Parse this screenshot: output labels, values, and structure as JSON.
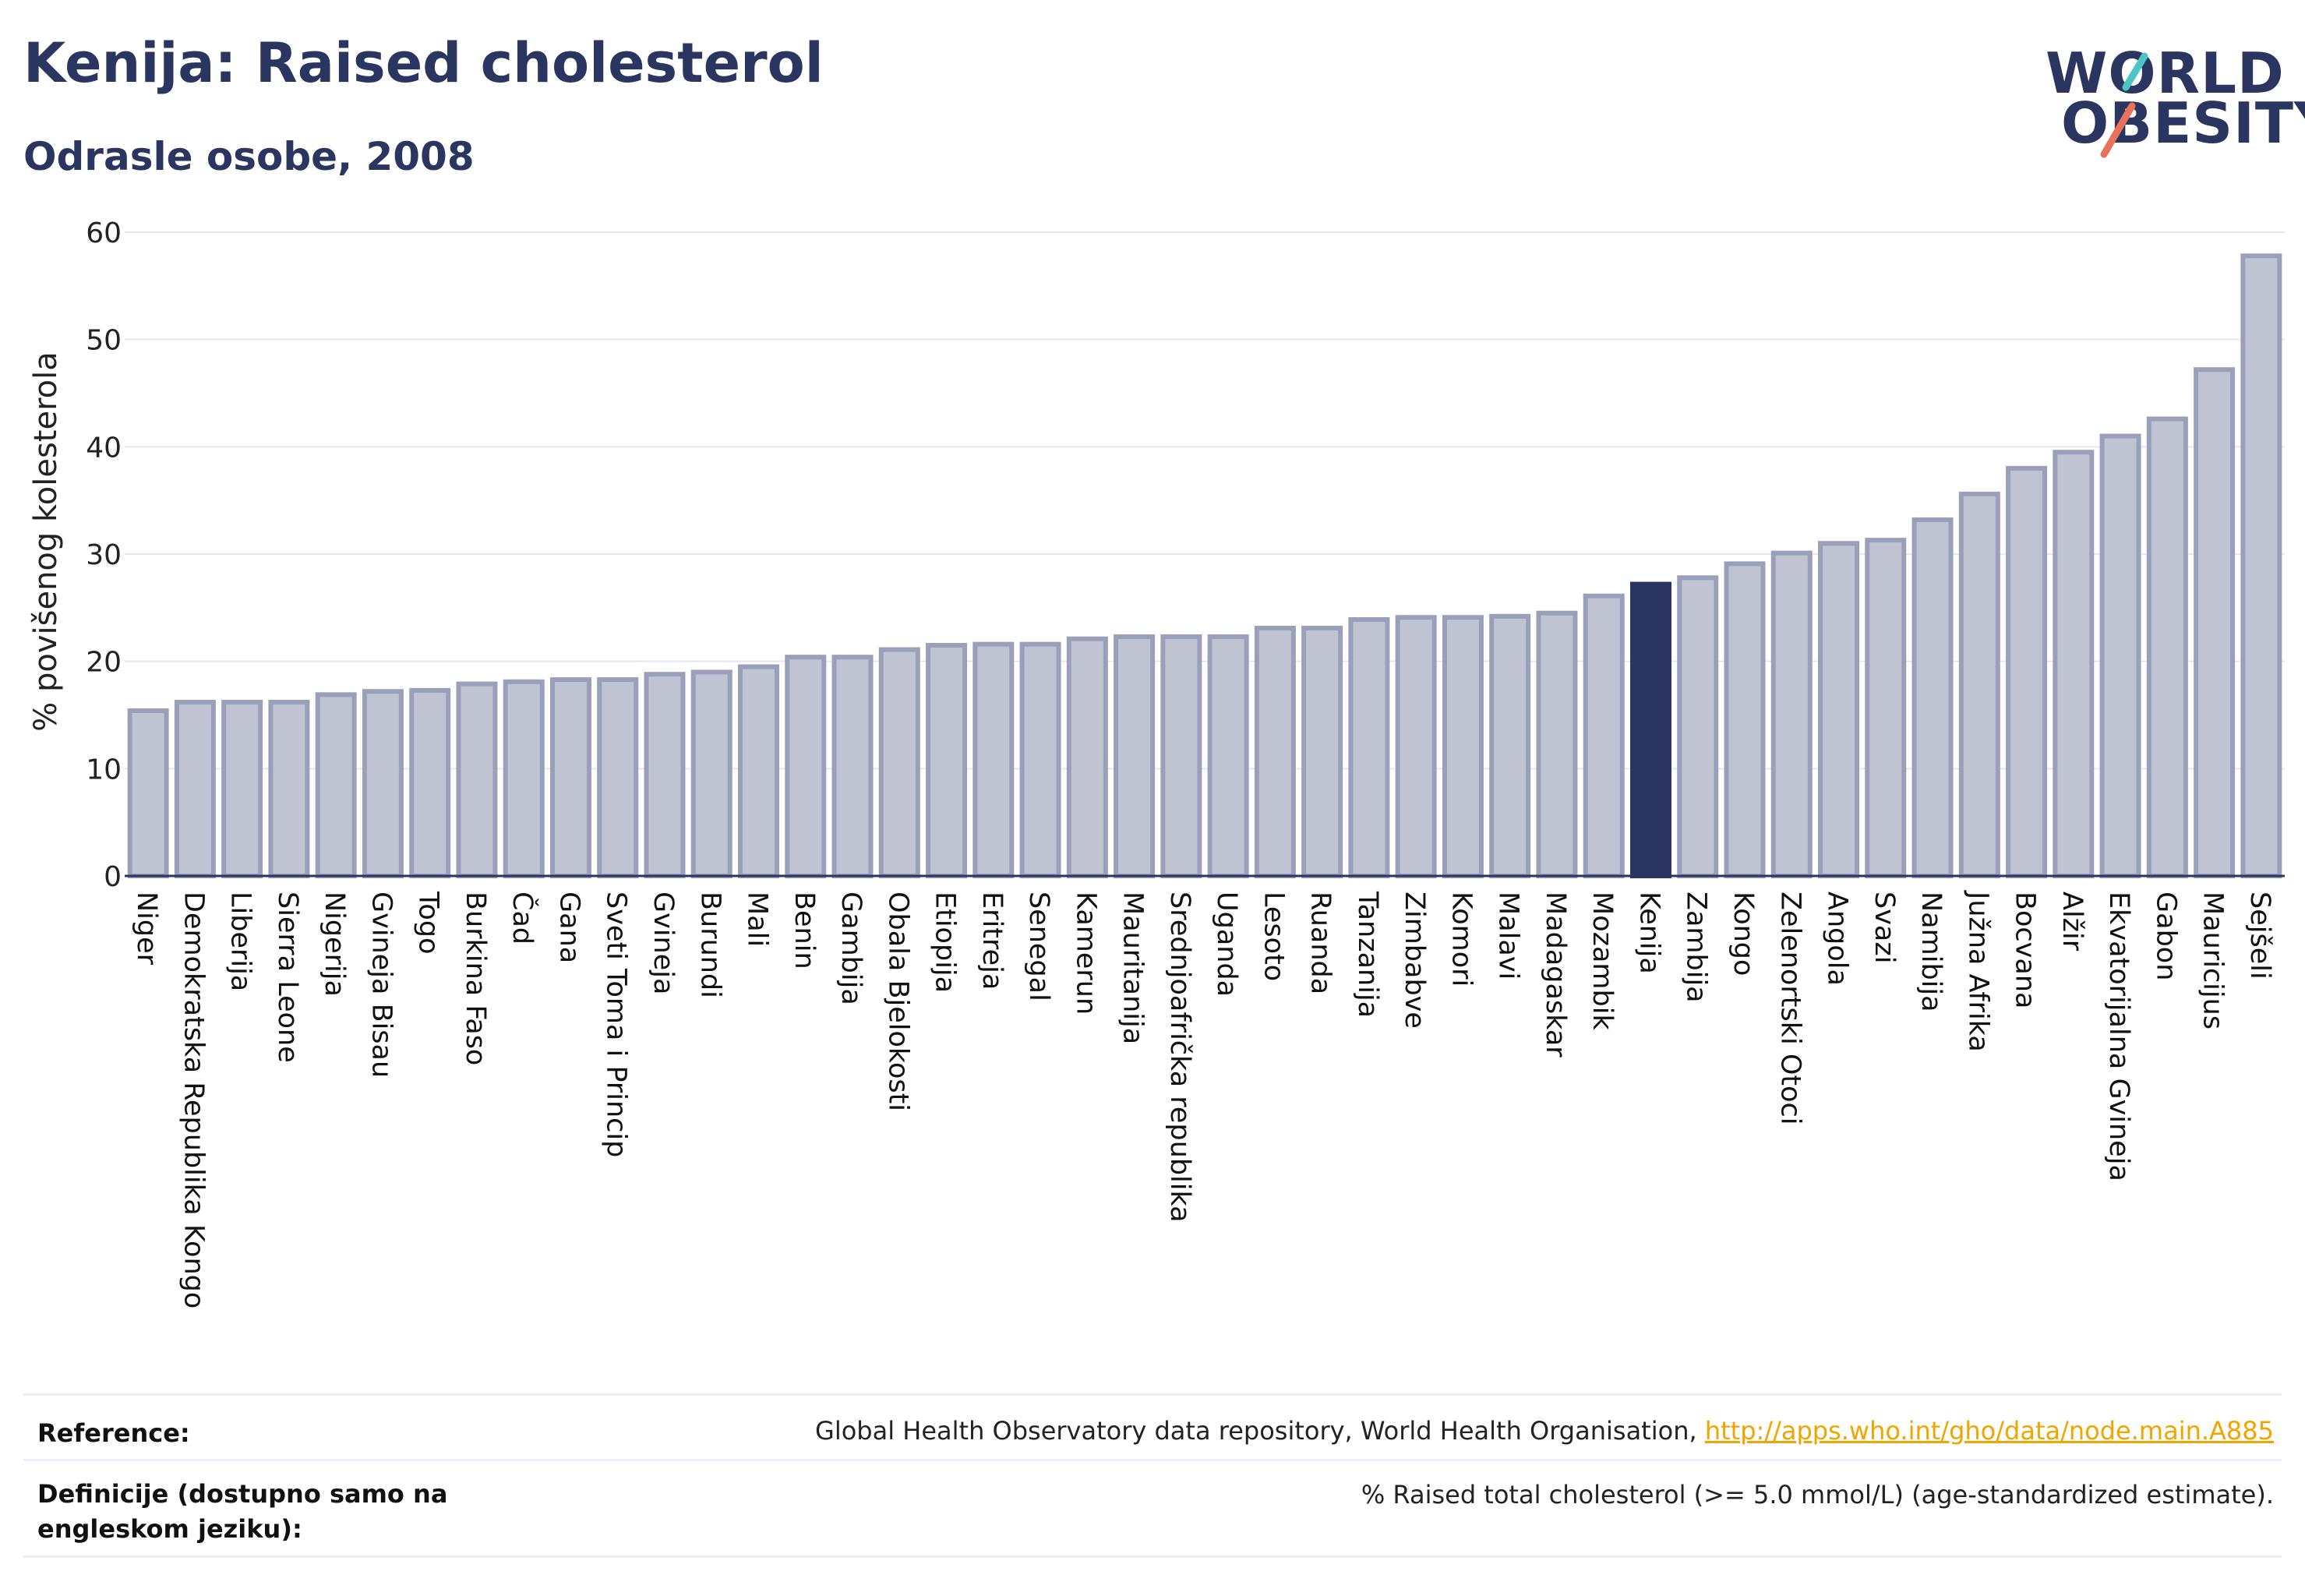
{
  "header": {
    "title": "Kenija: Raised cholesterol",
    "subtitle": "Odrasle osobe, 2008"
  },
  "logo": {
    "line1": "WORLD",
    "line2": "OBESITY",
    "slash_colors": [
      "#4fc4c4",
      "#e8735a"
    ]
  },
  "colors": {
    "bar_fill": "#bfc3d2",
    "bar_stroke": "#9aa0ba",
    "highlight": "#2a3560",
    "grid": "#e6e8ef",
    "text": "#2a3560"
  },
  "chart_data": {
    "type": "bar",
    "ylabel": "% povišenog kolesterola",
    "xlabel": "",
    "ylim": [
      0,
      60
    ],
    "yticks": [
      0,
      10,
      20,
      30,
      40,
      50,
      60
    ],
    "grid": true,
    "highlight": "Kenija",
    "categories": [
      "Niger",
      "Demokratska Republika Kongo",
      "Liberija",
      "Sierra Leone",
      "Nigerija",
      "Gvineja Bisau",
      "Togo",
      "Burkina Faso",
      "Čad",
      "Gana",
      "Sveti Toma i Princip",
      "Gvineja",
      "Burundi",
      "Mali",
      "Benin",
      "Gambija",
      "Obala Bjelokosti",
      "Etiopija",
      "Eritreja",
      "Senegal",
      "Kamerun",
      "Mauritanija",
      "Srednjoafrička republika",
      "Uganda",
      "Lesoto",
      "Ruanda",
      "Tanzanija",
      "Zimbabve",
      "Komori",
      "Malavi",
      "Madagaskar",
      "Mozambik",
      "Kenija",
      "Zambija",
      "Kongo",
      "Zelenortski Otoci",
      "Angola",
      "Svazi",
      "Namibija",
      "Južna Afrika",
      "Bocvana",
      "Alžir",
      "Ekvatorijalna Gvineja",
      "Gabon",
      "Mauricijus",
      "Sejšeli"
    ],
    "values": [
      15.4,
      16.2,
      16.2,
      16.2,
      16.9,
      17.2,
      17.3,
      17.9,
      18.1,
      18.3,
      18.3,
      18.8,
      19.0,
      19.5,
      20.4,
      20.4,
      21.1,
      21.5,
      21.6,
      21.6,
      22.1,
      22.3,
      22.3,
      22.3,
      23.1,
      23.1,
      23.9,
      24.1,
      24.1,
      24.2,
      24.5,
      26.1,
      27.2,
      27.8,
      29.1,
      30.1,
      31.0,
      31.3,
      33.2,
      35.6,
      38.0,
      39.5,
      41.0,
      42.6,
      47.2,
      57.8
    ]
  },
  "reference": {
    "label": "Reference:",
    "text": "Global Health Observatory data repository, World Health Organisation, ",
    "link": "http://apps.who.int/gho/data/node.main.A885"
  },
  "definition": {
    "label": "Definicije (dostupno samo na engleskom jeziku):",
    "text": "% Raised total cholesterol (>= 5.0 mmol/L) (age-standardized estimate)."
  }
}
